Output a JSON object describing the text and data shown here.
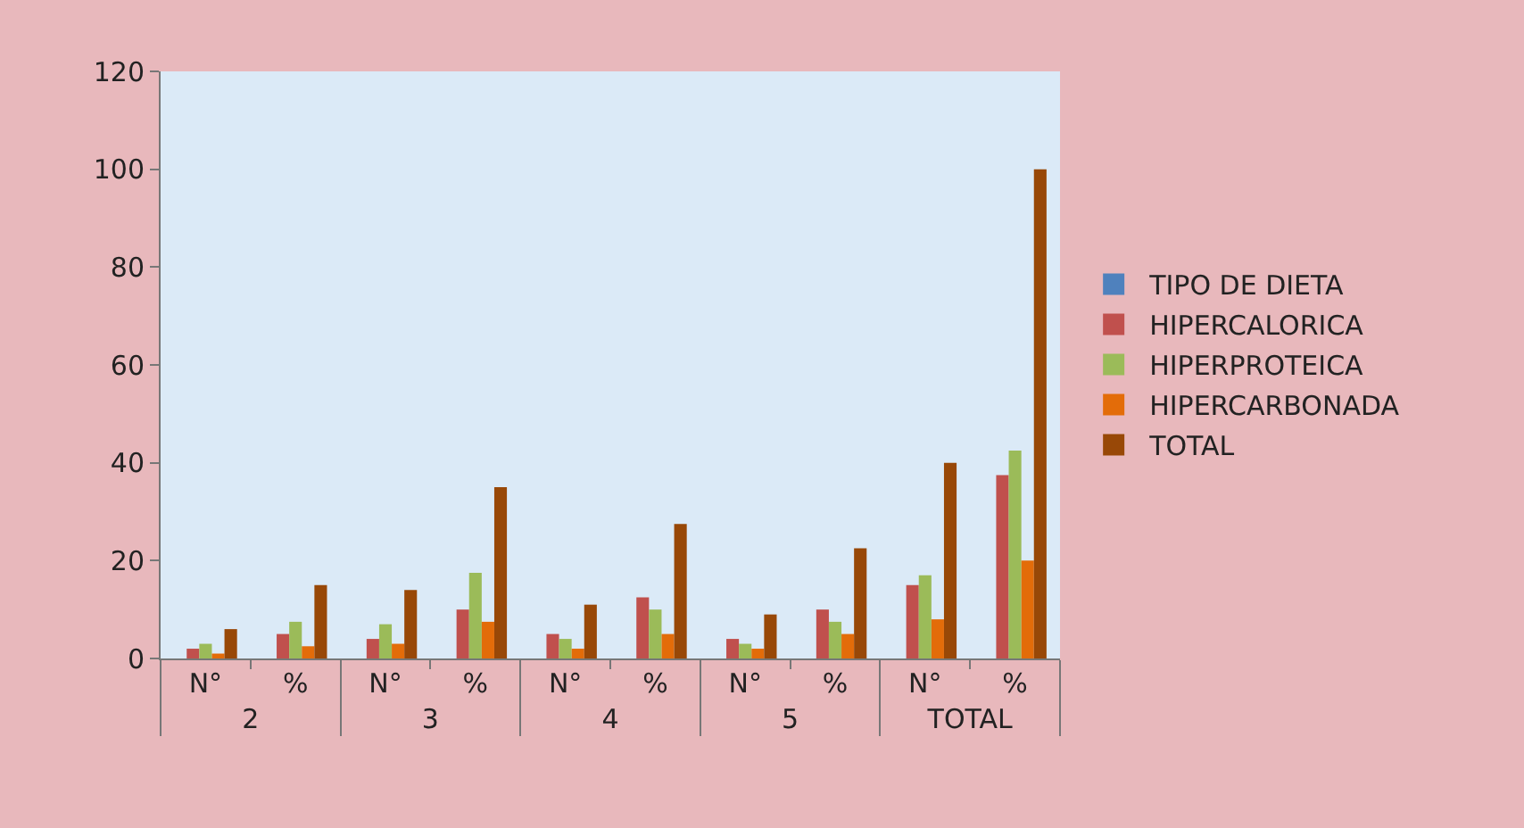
{
  "chart_data": {
    "type": "bar",
    "categories": [
      "N°",
      "%",
      "N°",
      "%",
      "N°",
      "%",
      "N°",
      "%",
      "N°",
      "%"
    ],
    "annotations": [
      "2",
      "3",
      "4",
      "5",
      "TOTAL"
    ],
    "series": [
      {
        "name": "TIPO DE DIETA",
        "color": "#4f81bd",
        "values": [
          0,
          0,
          0,
          0,
          0,
          0,
          0,
          0,
          0,
          0
        ]
      },
      {
        "name": "HIPERCALORICA",
        "color": "#c0504d",
        "values": [
          2,
          5,
          4,
          10,
          5,
          12.5,
          4,
          10,
          15,
          37.5
        ]
      },
      {
        "name": "HIPERPROTEICA",
        "color": "#9bbb59",
        "values": [
          3,
          7.5,
          7,
          17.5,
          4,
          10,
          3,
          7.5,
          17,
          42.5
        ]
      },
      {
        "name": "HIPERCARBONADA",
        "color": "#e36c09",
        "values": [
          1,
          2.5,
          3,
          7.5,
          2,
          5,
          2,
          5,
          8,
          20
        ]
      },
      {
        "name": "TOTAL",
        "color": "#984807",
        "values": [
          6,
          15,
          14,
          35,
          11,
          27.5,
          9,
          22.5,
          40,
          100
        ]
      }
    ],
    "ylim": [
      0,
      120
    ],
    "yticks": [
      0,
      20,
      40,
      60,
      80,
      100,
      120
    ],
    "grid": false,
    "legend": "right"
  }
}
